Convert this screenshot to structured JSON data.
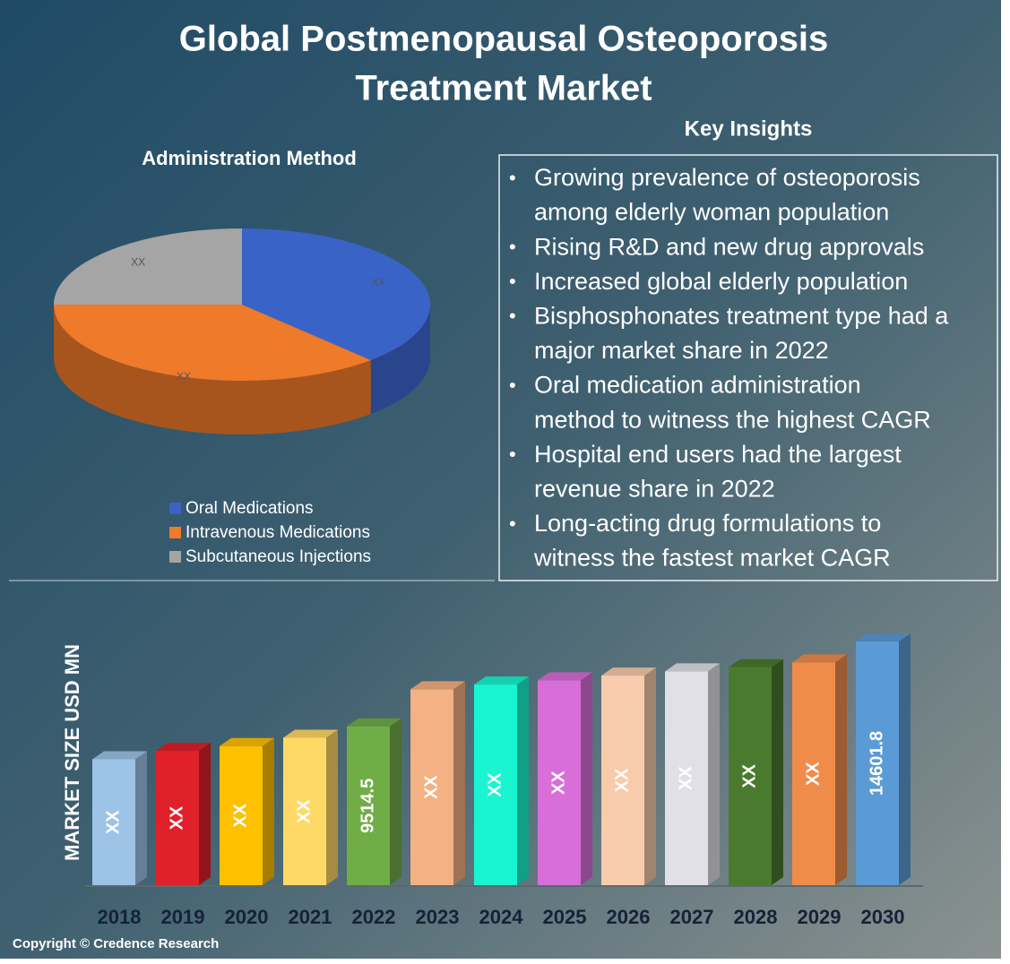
{
  "title": [
    "Global Postmenopausal Osteoporosis",
    "Treatment Market"
  ],
  "insights": {
    "title": "Key Insights",
    "items": [
      [
        "Growing prevalence of osteoporosis",
        "among elderly woman population"
      ],
      [
        "Rising R&D and new drug approvals"
      ],
      [
        "Increased global elderly population"
      ],
      [
        "Bisphosphonates treatment type had a",
        "major market share in 2022"
      ],
      [
        "Oral medication administration",
        "method to witness the highest CAGR"
      ],
      [
        "Hospital end users had the largest",
        "revenue share in 2022"
      ],
      [
        "Long-acting drug formulations to",
        "witness the fastest market CAGR"
      ]
    ]
  },
  "copyright": "Copyright © Credence Research",
  "chart_data": [
    {
      "type": "pie",
      "title": "Administration Method",
      "categories": [
        "Oral Medications",
        "Intravenous Medications",
        "Subcutaneous Injections"
      ],
      "values": [
        38,
        37,
        25
      ],
      "value_labels": [
        "XX",
        "XX",
        "XX"
      ],
      "colors": [
        "#3a63c8",
        "#ee7a2a",
        "#a5a5a5"
      ]
    },
    {
      "type": "bar",
      "ylabel": "MARKET SIZE USD MN",
      "categories": [
        "2018",
        "2019",
        "2020",
        "2021",
        "2022",
        "2023",
        "2024",
        "2025",
        "2026",
        "2027",
        "2028",
        "2029",
        "2030"
      ],
      "values": [
        7545,
        8046,
        8333,
        8834,
        9514.5,
        11734,
        12020,
        12271,
        12557,
        12808,
        13058,
        13345,
        14601.8
      ],
      "value_labels": [
        "XX",
        "XX",
        "XX",
        "XX",
        null,
        "XX",
        "XX",
        "XX",
        "XX",
        "XX",
        "XX",
        "XX",
        null
      ],
      "colors": [
        "#9dc3e6",
        "#e0202a",
        "#ffc000",
        "#ffd966",
        "#70ad47",
        "#f4b183",
        "#19f5d0",
        "#d86ed8",
        "#f8cbad",
        "#e0e0e6",
        "#4a7a2e",
        "#f08c4a",
        "#5b9bd5"
      ]
    }
  ]
}
